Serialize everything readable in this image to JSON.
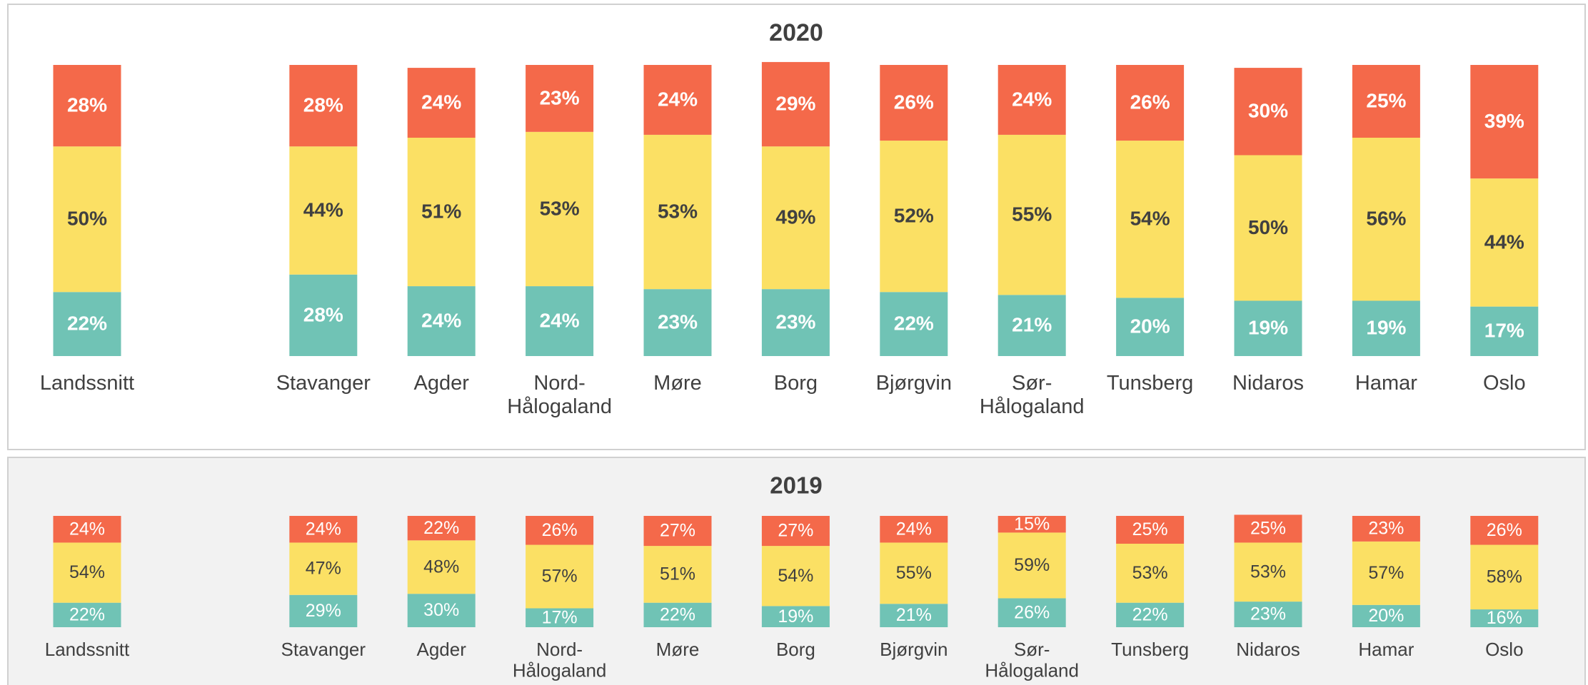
{
  "chart_data": [
    {
      "type": "bar",
      "stacked": true,
      "title": "2020",
      "categories": [
        "Landssnitt",
        "Stavanger",
        "Agder",
        "Nord-Hålogaland",
        "Møre",
        "Borg",
        "Bjørgvin",
        "Sør-Hålogaland",
        "Tunsberg",
        "Nidaros",
        "Hamar",
        "Oslo"
      ],
      "ylim": [
        0,
        100
      ],
      "series": [
        {
          "color": "#70c3b5",
          "values": [
            22,
            28,
            24,
            24,
            23,
            23,
            22,
            21,
            20,
            19,
            19,
            17
          ],
          "value_labels": [
            "22%",
            "28%",
            "24%",
            "24%",
            "23%",
            "23%",
            "22%",
            "21%",
            "20%",
            "19%",
            "19%",
            "17%"
          ]
        },
        {
          "color": "#fbe064",
          "values": [
            50,
            44,
            51,
            53,
            53,
            49,
            52,
            55,
            54,
            50,
            56,
            44
          ],
          "value_labels": [
            "50%",
            "44%",
            "51%",
            "53%",
            "53%",
            "49%",
            "52%",
            "55%",
            "54%",
            "50%",
            "56%",
            "44%"
          ]
        },
        {
          "color": "#f4694a",
          "values": [
            28,
            28,
            24,
            23,
            24,
            29,
            26,
            24,
            26,
            30,
            25,
            39
          ],
          "value_labels": [
            "28%",
            "28%",
            "24%",
            "23%",
            "24%",
            "29%",
            "26%",
            "24%",
            "26%",
            "30%",
            "25%",
            "39%"
          ]
        }
      ]
    },
    {
      "type": "bar",
      "stacked": true,
      "title": "2019",
      "categories": [
        "Landssnitt",
        "Stavanger",
        "Agder",
        "Nord-Hålogaland",
        "Møre",
        "Borg",
        "Bjørgvin",
        "Sør-Hålogaland",
        "Tunsberg",
        "Nidaros",
        "Hamar",
        "Oslo"
      ],
      "ylim": [
        0,
        100
      ],
      "series": [
        {
          "color": "#70c3b5",
          "values": [
            22,
            29,
            30,
            17,
            22,
            19,
            21,
            26,
            22,
            23,
            20,
            16
          ],
          "value_labels": [
            "22%",
            "29%",
            "30%",
            "17%",
            "22%",
            "19%",
            "21%",
            "26%",
            "22%",
            "23%",
            "20%",
            "16%"
          ]
        },
        {
          "color": "#fbe064",
          "values": [
            54,
            47,
            48,
            57,
            51,
            54,
            55,
            59,
            53,
            53,
            57,
            58
          ],
          "value_labels": [
            "54%",
            "47%",
            "48%",
            "57%",
            "51%",
            "54%",
            "55%",
            "59%",
            "53%",
            "53%",
            "57%",
            "58%"
          ]
        },
        {
          "color": "#f4694a",
          "values": [
            24,
            24,
            22,
            26,
            27,
            27,
            24,
            15,
            25,
            25,
            23,
            26
          ],
          "value_labels": [
            "24%",
            "24%",
            "22%",
            "26%",
            "27%",
            "27%",
            "24%",
            "15%",
            "25%",
            "25%",
            "23%",
            "26%"
          ]
        }
      ]
    }
  ]
}
